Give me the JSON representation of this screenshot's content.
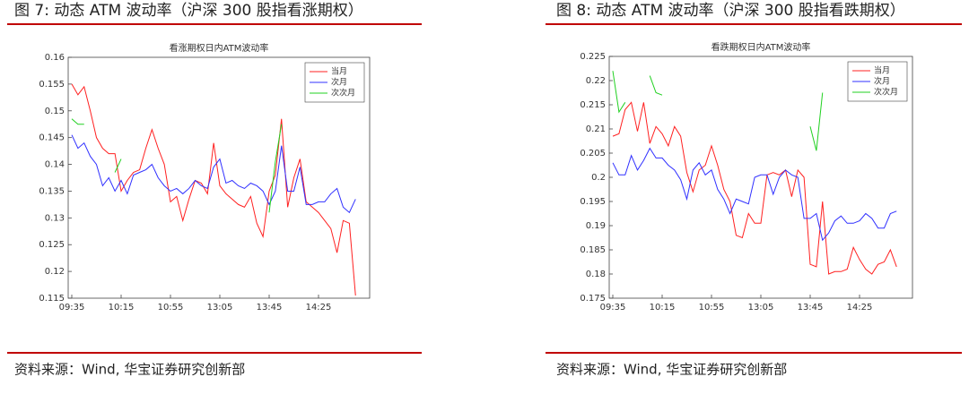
{
  "figures": [
    {
      "caption": "图 7: 动态 ATM 波动率（沪深 300 股指看涨期权）",
      "source": "资料来源：Wind, 华宝证券研究创新部"
    },
    {
      "caption": "图 8: 动态 ATM 波动率（沪深 300 股指看跌期权）",
      "source": "资料来源：Wind, 华宝证券研究创新部"
    }
  ],
  "chart_data": [
    {
      "type": "line",
      "title": "看涨期权日内ATM波动率",
      "categories": [
        "09:35",
        null,
        null,
        null,
        null,
        null,
        null,
        null,
        "10:15",
        null,
        null,
        null,
        null,
        null,
        null,
        null,
        "10:55",
        null,
        null,
        null,
        null,
        null,
        null,
        null,
        "13:05",
        null,
        null,
        null,
        null,
        null,
        null,
        null,
        "13:45",
        null,
        null,
        null,
        null,
        null,
        null,
        null,
        "14:25",
        null,
        null,
        null,
        null,
        null,
        null
      ],
      "ylim": [
        0.115,
        0.16
      ],
      "yticks": [
        0.115,
        0.12,
        0.125,
        0.13,
        0.135,
        0.14,
        0.145,
        0.15,
        0.155,
        0.16
      ],
      "legend": "upper right",
      "grid": false,
      "series": [
        {
          "name": "当月",
          "color": "#ff2020",
          "values": [
            0.155,
            0.153,
            0.1545,
            0.15,
            0.145,
            0.143,
            0.142,
            0.142,
            0.135,
            0.137,
            0.1385,
            0.139,
            0.143,
            0.1465,
            0.143,
            0.14,
            0.133,
            0.134,
            0.1295,
            0.1335,
            0.137,
            0.1365,
            0.1345,
            0.144,
            0.136,
            0.1345,
            0.1335,
            0.1325,
            0.132,
            0.134,
            0.129,
            0.1265,
            0.135,
            0.138,
            0.1485,
            0.132,
            0.1375,
            0.141,
            0.133,
            0.132,
            0.131,
            0.1295,
            0.128,
            0.1235,
            0.1295,
            0.129,
            0.1155
          ]
        },
        {
          "name": "次月",
          "color": "#3030ff",
          "values": [
            0.1455,
            0.143,
            0.144,
            0.1415,
            0.14,
            0.136,
            0.1375,
            0.135,
            0.137,
            0.1345,
            0.138,
            0.1385,
            0.139,
            0.14,
            0.1375,
            0.136,
            0.135,
            0.1355,
            0.1345,
            0.1355,
            0.137,
            0.136,
            0.1355,
            0.1395,
            0.141,
            0.1365,
            0.137,
            0.136,
            0.1355,
            0.1365,
            0.136,
            0.135,
            0.1325,
            0.135,
            0.1435,
            0.135,
            0.135,
            0.1395,
            0.1325,
            0.1325,
            0.133,
            0.133,
            0.1345,
            0.1355,
            0.132,
            0.131,
            0.1335
          ]
        },
        {
          "name": "次次月",
          "color": "#20d020",
          "values": [
            0.1485,
            0.1475,
            0.1475,
            null,
            null,
            null,
            null,
            0.1385,
            0.141,
            null,
            null,
            null,
            null,
            null,
            null,
            null,
            null,
            null,
            null,
            null,
            null,
            null,
            null,
            null,
            null,
            null,
            null,
            null,
            null,
            null,
            null,
            null,
            0.131,
            0.1405,
            0.1475,
            null,
            null,
            null,
            null,
            null,
            null,
            null,
            null,
            null,
            null,
            null,
            null
          ]
        }
      ]
    },
    {
      "type": "line",
      "title": "看跌期权日内ATM波动率",
      "categories": [
        "09:35",
        null,
        null,
        null,
        null,
        null,
        null,
        null,
        "10:15",
        null,
        null,
        null,
        null,
        null,
        null,
        null,
        "10:55",
        null,
        null,
        null,
        null,
        null,
        null,
        null,
        "13:05",
        null,
        null,
        null,
        null,
        null,
        null,
        null,
        "13:45",
        null,
        null,
        null,
        null,
        null,
        null,
        null,
        "14:25",
        null,
        null,
        null,
        null,
        null,
        null
      ],
      "ylim": [
        0.175,
        0.225
      ],
      "yticks": [
        0.175,
        0.18,
        0.185,
        0.19,
        0.195,
        0.2,
        0.205,
        0.21,
        0.215,
        0.22,
        0.225
      ],
      "legend": "upper right",
      "grid": false,
      "series": [
        {
          "name": "当月",
          "color": "#ff2020",
          "values": [
            0.2085,
            0.209,
            0.214,
            0.2155,
            0.2095,
            0.2155,
            0.207,
            0.2105,
            0.209,
            0.2065,
            0.2105,
            0.2085,
            0.201,
            0.197,
            0.2015,
            0.2025,
            0.2065,
            0.2025,
            0.1975,
            0.195,
            0.188,
            0.1875,
            0.1925,
            0.1905,
            0.1905,
            0.2005,
            0.201,
            0.2005,
            0.2015,
            0.196,
            0.2015,
            0.2,
            0.182,
            0.1815,
            0.195,
            0.18,
            0.1805,
            0.1805,
            0.181,
            0.1855,
            0.183,
            0.181,
            0.18,
            0.182,
            0.1825,
            0.185,
            0.1815
          ]
        },
        {
          "name": "次月",
          "color": "#3030ff",
          "values": [
            0.203,
            0.2005,
            0.2005,
            0.2045,
            0.2015,
            0.2035,
            0.206,
            0.204,
            0.204,
            0.2025,
            0.2015,
            0.1995,
            0.1955,
            0.2015,
            0.203,
            0.2005,
            0.2015,
            0.1975,
            0.1955,
            0.1925,
            0.1955,
            0.195,
            0.1945,
            0.2,
            0.2005,
            0.2005,
            0.1965,
            0.2,
            0.2015,
            0.2005,
            0.2,
            0.1915,
            0.1915,
            0.1925,
            0.187,
            0.1885,
            0.191,
            0.192,
            0.1905,
            0.1905,
            0.191,
            0.1925,
            0.1915,
            0.1895,
            0.1895,
            0.1925,
            0.193
          ]
        },
        {
          "name": "次次月",
          "color": "#20d020",
          "values": [
            0.222,
            0.2135,
            0.2155,
            null,
            null,
            null,
            0.221,
            0.2175,
            0.217,
            null,
            null,
            null,
            null,
            null,
            null,
            null,
            null,
            null,
            null,
            null,
            null,
            null,
            null,
            null,
            null,
            null,
            null,
            null,
            null,
            null,
            null,
            null,
            0.2105,
            0.2055,
            0.2175,
            null,
            null,
            null,
            null,
            null,
            null,
            null,
            null,
            null,
            null,
            null,
            null
          ]
        }
      ]
    }
  ]
}
